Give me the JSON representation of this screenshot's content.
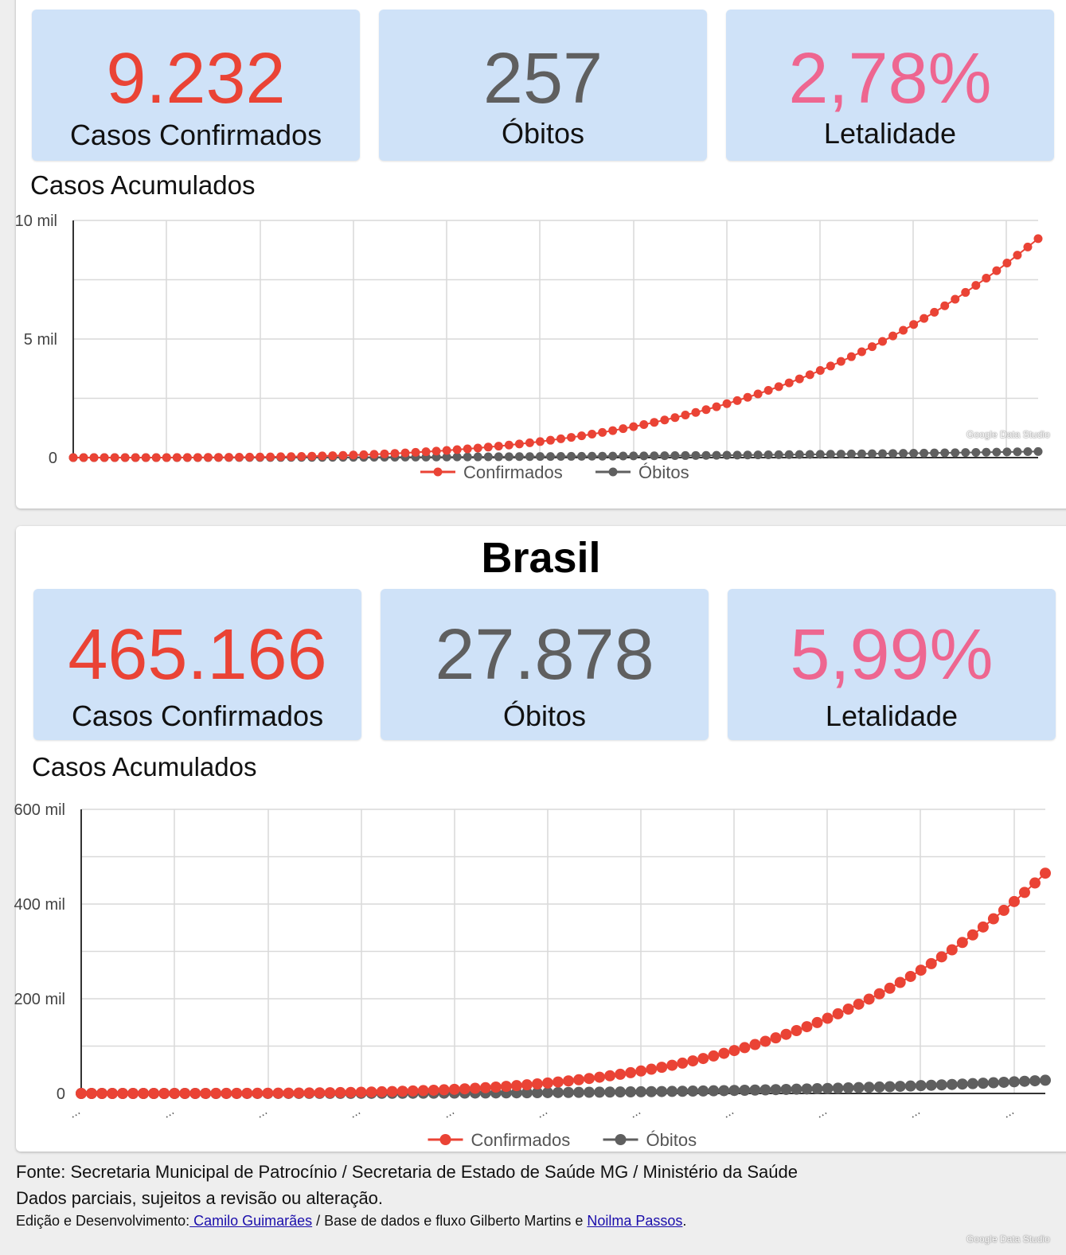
{
  "municipal": {
    "kpis": [
      {
        "value": "9.232",
        "label": "Casos Confirmados",
        "color": "#ea4335"
      },
      {
        "value": "257",
        "label": "Óbitos",
        "color": "#5f5f5f"
      },
      {
        "value": "2,78%",
        "label": "Letalidade",
        "color": "#ee6690"
      }
    ],
    "chart_title": "Casos Acumulados"
  },
  "brasil": {
    "heading": "Brasil",
    "kpis": [
      {
        "value": "465.166",
        "label": "Casos Confirmados",
        "color": "#ea4335"
      },
      {
        "value": "27.878",
        "label": "Óbitos",
        "color": "#5f5f5f"
      },
      {
        "value": "5,99%",
        "label": "Letalidade",
        "color": "#ee6690"
      }
    ],
    "chart_title": "Casos Acumulados"
  },
  "watermark": "Google Data Studio",
  "footer": {
    "source": "Fonte: Secretaria Municipal de Patrocínio / Secretaria de Estado de Saúde MG / Ministério da Saúde",
    "disclaimer": "Dados parciais, sujeitos a revisão ou alteração.",
    "credits_prefix": "Edição e Desenvolvimento:",
    "credits_link1": " Camilo Guimarães",
    "credits_middle": " / Base de dados e fluxo Gilberto Martins e ",
    "credits_link2": "Noilma Passos",
    "credits_suffix": "."
  },
  "chart_data": [
    {
      "type": "line",
      "title": "Casos Acumulados",
      "ylim": [
        0,
        10000
      ],
      "yticks": [
        {
          "value": 0,
          "label": "0"
        },
        {
          "value": 5000,
          "label": "5 mil"
        },
        {
          "value": 10000,
          "label": "10 mil"
        }
      ],
      "x_count": 94,
      "legend": "bottom-center",
      "series": [
        {
          "name": "Confirmados",
          "color": "#ea4335",
          "end": 9232,
          "exponent": 3.6
        },
        {
          "name": "Óbitos",
          "color": "#5f5f5f",
          "end": 257,
          "exponent": 2.4
        }
      ]
    },
    {
      "type": "line",
      "title": "Casos Acumulados",
      "ylim": [
        0,
        600000
      ],
      "yticks": [
        {
          "value": 0,
          "label": "0"
        },
        {
          "value": 200000,
          "label": "200 mil"
        },
        {
          "value": 400000,
          "label": "400 mil"
        },
        {
          "value": 600000,
          "label": "600 mil"
        }
      ],
      "x_count": 94,
      "legend": "bottom-center",
      "series": [
        {
          "name": "Confirmados",
          "color": "#ea4335",
          "end": 465166,
          "exponent": 4.2
        },
        {
          "name": "Óbitos",
          "color": "#5f5f5f",
          "end": 27878,
          "exponent": 3.8
        }
      ]
    }
  ]
}
